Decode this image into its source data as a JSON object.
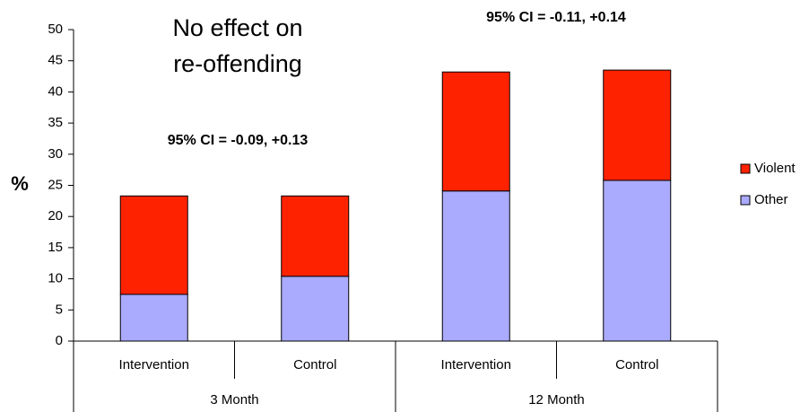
{
  "chart_data": {
    "type": "stacked_bar",
    "categories": [
      "Intervention",
      "Control",
      "Intervention",
      "Control"
    ],
    "groups": [
      "3 Month",
      "12 Month"
    ],
    "y_label": "%",
    "series": [
      {
        "name": "Other",
        "color": "#aaaaff",
        "values": [
          7.5,
          10.4,
          24.1,
          25.8
        ]
      },
      {
        "name": "Violent",
        "color": "#ff2200",
        "values": [
          15.8,
          12.9,
          19.1,
          17.7
        ]
      }
    ],
    "ylim": [
      0,
      50
    ],
    "yticks": [
      0,
      5,
      10,
      15,
      20,
      25,
      30,
      35,
      40,
      45,
      50
    ],
    "grid": false,
    "legend": "right",
    "annotations": [
      "No effect on",
      "re-offending",
      "95% CI = -0.09, +0.13",
      "95% CI = -0.11, +0.14"
    ]
  }
}
